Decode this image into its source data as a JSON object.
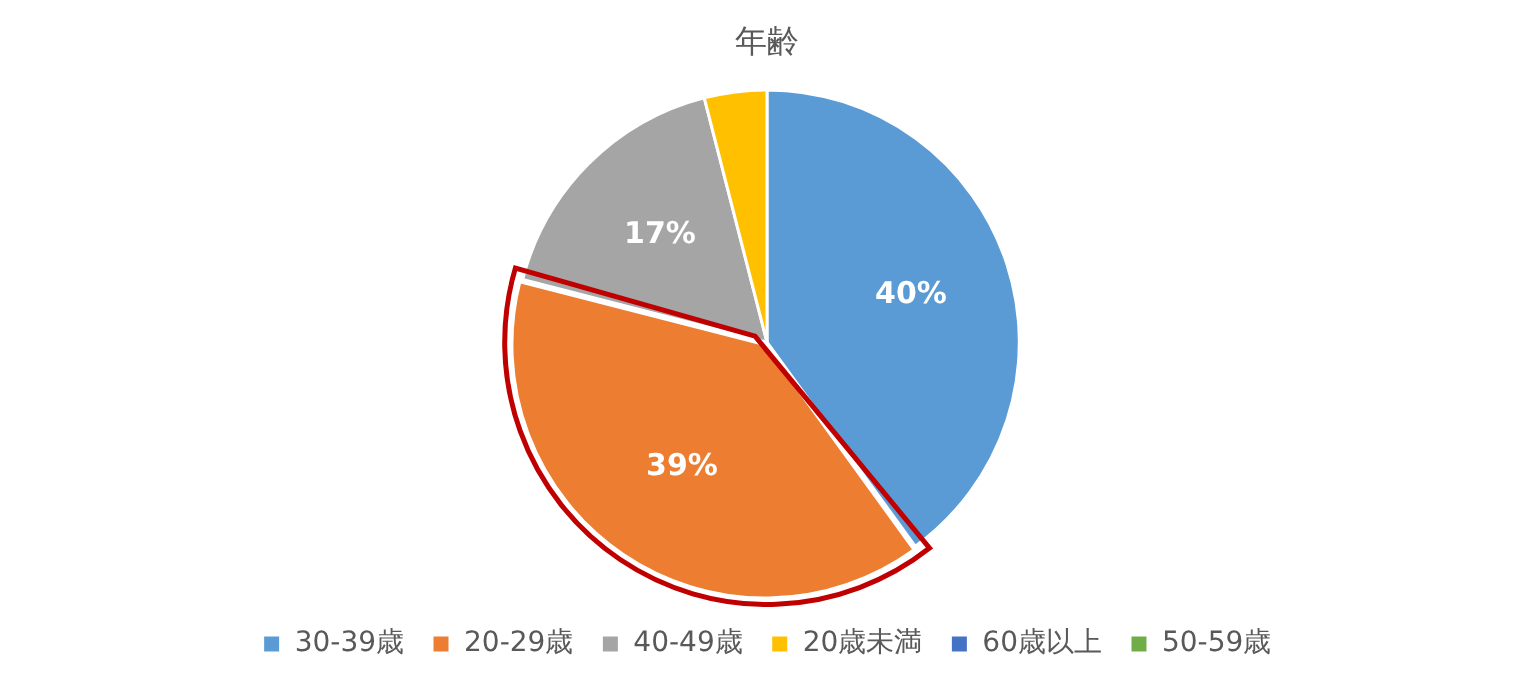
{
  "chart_data": {
    "type": "pie",
    "title": "年齢",
    "categories": [
      "30-39歳",
      "20-29歳",
      "40-49歳",
      "20歳未満",
      "60歳以上",
      "50-59歳"
    ],
    "values": [
      40,
      39,
      17,
      4,
      0,
      0
    ],
    "colors": [
      "#5b9bd5",
      "#ed7d31",
      "#a5a5a5",
      "#ffc000",
      "#4472c4",
      "#70ad47"
    ],
    "value_labels": [
      "40%",
      "39%",
      "17%",
      null,
      null,
      null
    ],
    "legend": "bottom"
  }
}
